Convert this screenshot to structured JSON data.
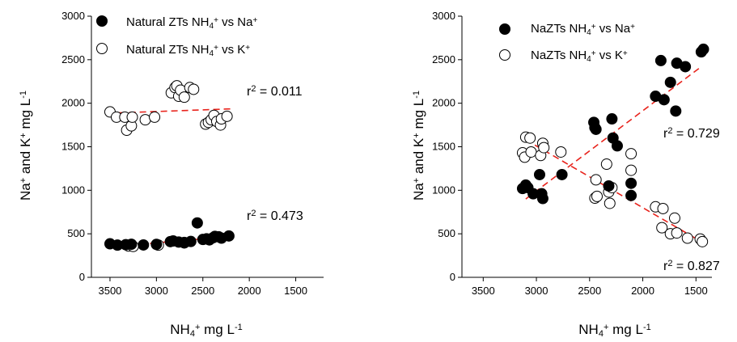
{
  "chart_data": [
    {
      "type": "scatter",
      "xlabel": "NH4+ mg L-1",
      "ylabel": "Na+ and K+ mg L-1",
      "xlabel_parts": [
        [
          "NH",
          ""
        ],
        [
          "4",
          "sub"
        ],
        [
          "+",
          "sup"
        ],
        [
          " mg L",
          ""
        ],
        [
          "-1",
          "sup"
        ]
      ],
      "ylabel_parts": [
        [
          "Na",
          ""
        ],
        [
          "+",
          "sup"
        ],
        [
          " and K",
          ""
        ],
        [
          "+",
          "sup"
        ],
        [
          " mg L",
          ""
        ],
        [
          "-1",
          "sup"
        ]
      ],
      "xlim": [
        3700,
        1200
      ],
      "ylim": [
        0,
        3000
      ],
      "x_ticks": [
        3500,
        3000,
        2500,
        2000,
        1500
      ],
      "y_ticks": [
        0,
        500,
        1000,
        1500,
        2000,
        2500,
        3000
      ],
      "grid": false,
      "legend_position": "top-left",
      "series": [
        {
          "name": "Natural ZTs NH4+ vs Na+",
          "name_parts": [
            [
              "Natural ZTs NH",
              ""
            ],
            [
              "4",
              "sub"
            ],
            [
              "+",
              "sup"
            ],
            [
              " vs Na",
              ""
            ],
            [
              "+",
              "sup"
            ]
          ],
          "marker": "filled-circle",
          "points": [
            [
              3500,
              385
            ],
            [
              3420,
              370
            ],
            [
              3330,
              375
            ],
            [
              3270,
              380
            ],
            [
              3140,
              372
            ],
            [
              3000,
              378
            ],
            [
              2850,
              410
            ],
            [
              2820,
              418
            ],
            [
              2760,
              405
            ],
            [
              2700,
              400
            ],
            [
              2630,
              412
            ],
            [
              2560,
              625
            ],
            [
              2500,
              435
            ],
            [
              2460,
              442
            ],
            [
              2430,
              430
            ],
            [
              2390,
              455
            ],
            [
              2370,
              470
            ],
            [
              2330,
              465
            ],
            [
              2300,
              450
            ],
            [
              2220,
              475
            ]
          ],
          "fit": {
            "x": [
              3520,
              2200
            ],
            "y": [
              348,
              470
            ],
            "r2_label": "0.473"
          }
        },
        {
          "name": "Natural ZTs NH4+ vs K+",
          "name_parts": [
            [
              "Natural ZTs NH",
              ""
            ],
            [
              "4",
              "sub"
            ],
            [
              "+",
              "sup"
            ],
            [
              " vs K",
              ""
            ],
            [
              "+",
              "sup"
            ]
          ],
          "marker": "open-circle",
          "points": [
            [
              3500,
              1900
            ],
            [
              3430,
              1840
            ],
            [
              3340,
              1840
            ],
            [
              3320,
              1690
            ],
            [
              3270,
              1740
            ],
            [
              3260,
              1840
            ],
            [
              3120,
              1810
            ],
            [
              3020,
              1840
            ],
            [
              2840,
              2120
            ],
            [
              2800,
              2180
            ],
            [
              2780,
              2200
            ],
            [
              2760,
              2080
            ],
            [
              2740,
              2150
            ],
            [
              2700,
              2070
            ],
            [
              2640,
              2180
            ],
            [
              2600,
              2160
            ],
            [
              2470,
              1760
            ],
            [
              2440,
              1780
            ],
            [
              2410,
              1810
            ],
            [
              2380,
              1860
            ],
            [
              2350,
              1790
            ],
            [
              2310,
              1750
            ],
            [
              2300,
              1820
            ],
            [
              2240,
              1850
            ],
            [
              3300,
              360
            ],
            [
              3250,
              355
            ],
            [
              2980,
              370
            ],
            [
              2700,
              395
            ]
          ],
          "fit": {
            "x": [
              3520,
              2200
            ],
            "y": [
              1885,
              1935
            ],
            "r2_label": "0.011"
          }
        }
      ]
    },
    {
      "type": "scatter",
      "xlabel": "NH4+ mg L-1",
      "ylabel": "Na+ and K+ mg L-1",
      "xlabel_parts": [
        [
          "NH",
          ""
        ],
        [
          "4",
          "sub"
        ],
        [
          "+",
          "sup"
        ],
        [
          " mg L",
          ""
        ],
        [
          "-1",
          "sup"
        ]
      ],
      "ylabel_parts": [
        [
          "Na",
          ""
        ],
        [
          "+",
          "sup"
        ],
        [
          " and K",
          ""
        ],
        [
          "+",
          "sup"
        ],
        [
          " mg L",
          ""
        ],
        [
          "-1",
          "sup"
        ]
      ],
      "xlim": [
        3700,
        1350
      ],
      "ylim": [
        0,
        3000
      ],
      "x_ticks": [
        3500,
        3000,
        2500,
        2000,
        1500
      ],
      "y_ticks": [
        0,
        500,
        1000,
        1500,
        2000,
        2500,
        3000
      ],
      "grid": false,
      "legend_position": "top-left",
      "series": [
        {
          "name": "NaZTs NH4+ vs Na+",
          "name_parts": [
            [
              "NaZTs NH",
              ""
            ],
            [
              "4",
              "sub"
            ],
            [
              "+",
              "sup"
            ],
            [
              " vs Na",
              ""
            ],
            [
              "+",
              "sup"
            ]
          ],
          "marker": "filled-circle",
          "points": [
            [
              3130,
              1020
            ],
            [
              3100,
              1060
            ],
            [
              3080,
              1030
            ],
            [
              3030,
              960
            ],
            [
              2970,
              1180
            ],
            [
              2950,
              960
            ],
            [
              2940,
              905
            ],
            [
              2760,
              1180
            ],
            [
              2460,
              1780
            ],
            [
              2450,
              1720
            ],
            [
              2440,
              1700
            ],
            [
              2320,
              1050
            ],
            [
              2290,
              1820
            ],
            [
              2280,
              1600
            ],
            [
              2240,
              1510
            ],
            [
              2110,
              1080
            ],
            [
              2110,
              940
            ],
            [
              1880,
              2080
            ],
            [
              1830,
              2490
            ],
            [
              1800,
              2040
            ],
            [
              1740,
              2240
            ],
            [
              1690,
              1910
            ],
            [
              1680,
              2460
            ],
            [
              1600,
              2420
            ],
            [
              1450,
              2590
            ],
            [
              1430,
              2620
            ]
          ],
          "fit": {
            "x": [
              3100,
              1450
            ],
            "y": [
              900,
              2420
            ],
            "r2_label": "0.729"
          }
        },
        {
          "name": "NaZTs NH4+ vs K+",
          "name_parts": [
            [
              "NaZTs NH",
              ""
            ],
            [
              "4",
              "sub"
            ],
            [
              "+",
              "sup"
            ],
            [
              " vs K",
              ""
            ],
            [
              "+",
              "sup"
            ]
          ],
          "marker": "open-circle",
          "points": [
            [
              3130,
              1430
            ],
            [
              3110,
              1380
            ],
            [
              3100,
              1610
            ],
            [
              3060,
              1600
            ],
            [
              3050,
              1440
            ],
            [
              2960,
              1400
            ],
            [
              2940,
              1540
            ],
            [
              2930,
              1490
            ],
            [
              2770,
              1440
            ],
            [
              2450,
              910
            ],
            [
              2440,
              1120
            ],
            [
              2430,
              930
            ],
            [
              2340,
              1300
            ],
            [
              2320,
              980
            ],
            [
              2310,
              850
            ],
            [
              2290,
              1030
            ],
            [
              2110,
              1420
            ],
            [
              2110,
              1230
            ],
            [
              1880,
              810
            ],
            [
              1820,
              570
            ],
            [
              1810,
              790
            ],
            [
              1740,
              500
            ],
            [
              1700,
              680
            ],
            [
              1680,
              510
            ],
            [
              1580,
              450
            ],
            [
              1460,
              440
            ],
            [
              1440,
              410
            ]
          ],
          "fit": {
            "x": [
              3100,
              1450
            ],
            "y": [
              1580,
              410
            ],
            "r2_label": "0.827"
          }
        }
      ]
    }
  ]
}
